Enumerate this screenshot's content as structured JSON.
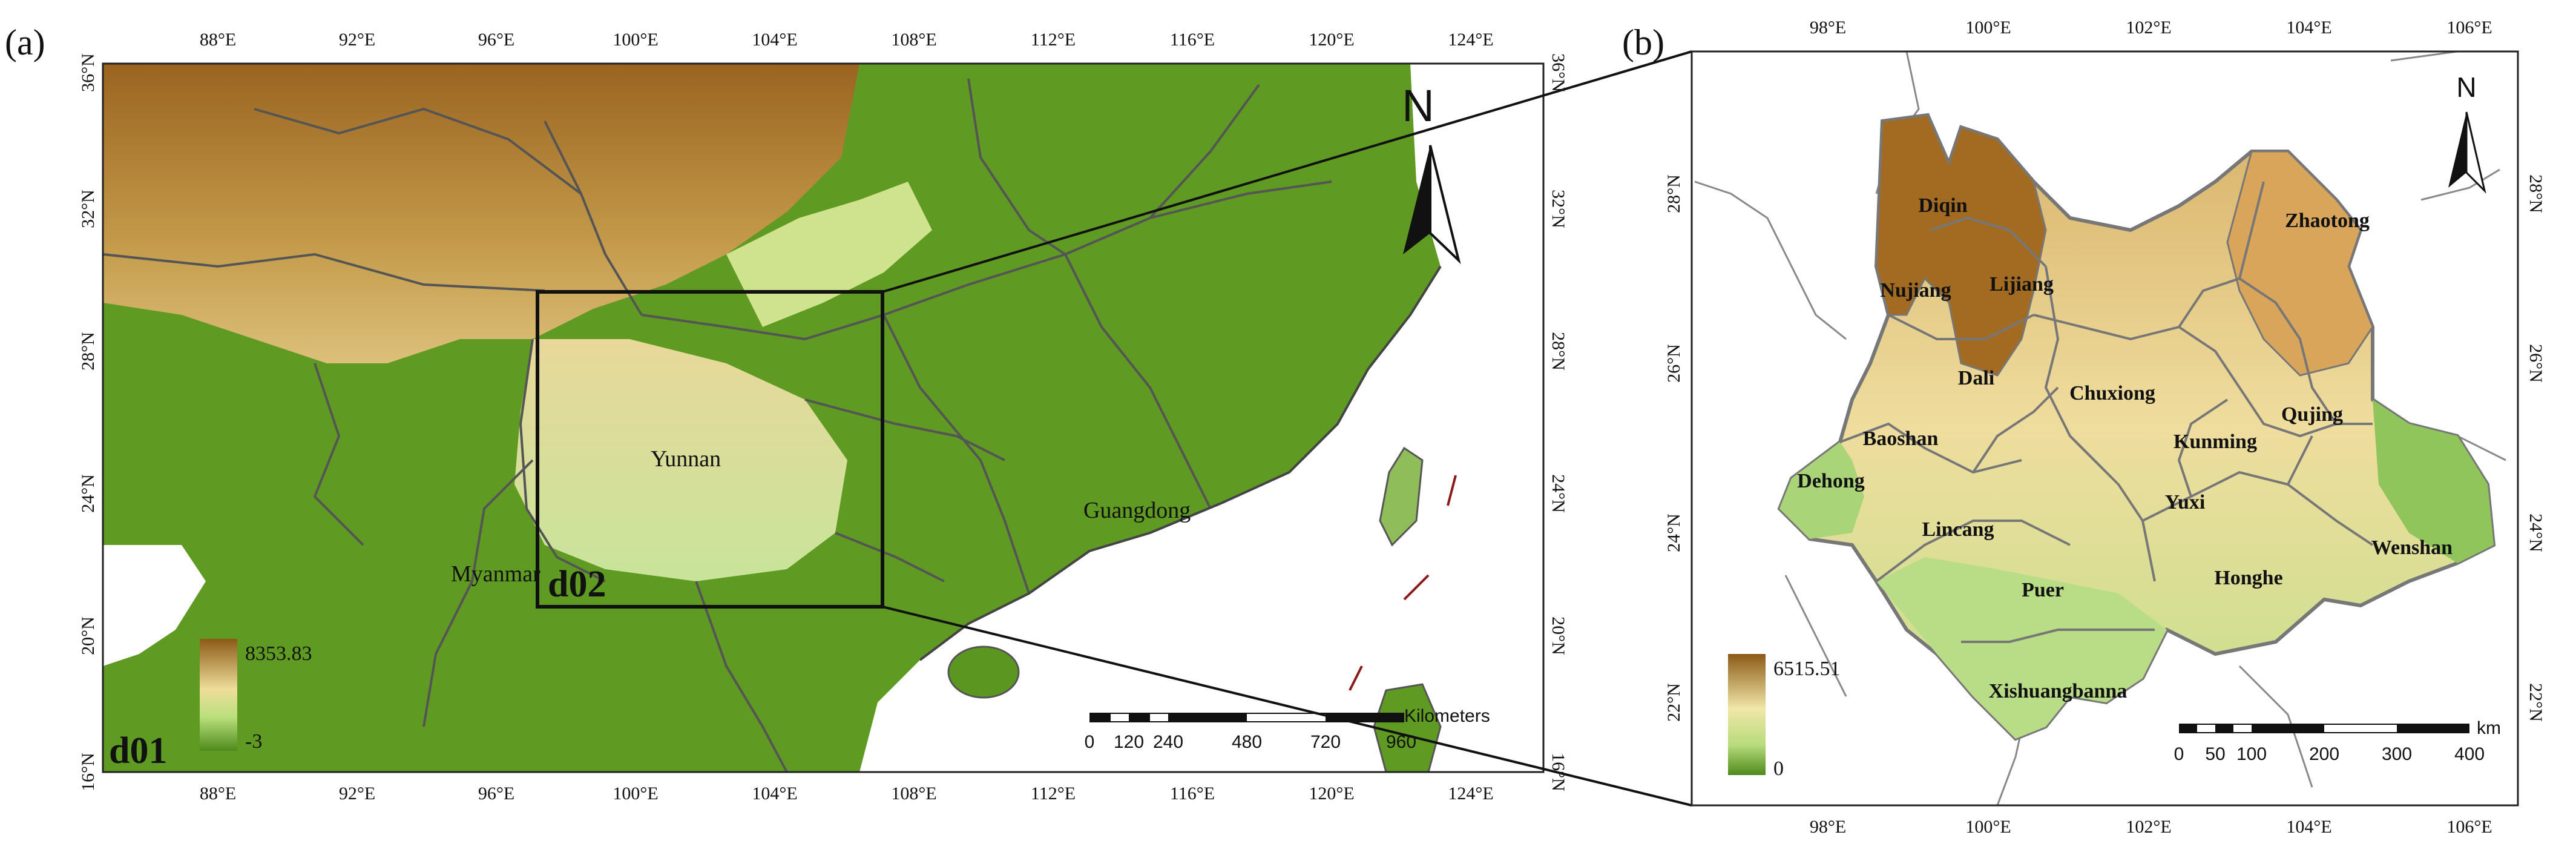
{
  "panel_a": {
    "letter": "(a)",
    "lon_ticks": [
      "88°E",
      "92°E",
      "96°E",
      "100°E",
      "104°E",
      "108°E",
      "112°E",
      "116°E",
      "120°E",
      "124°E"
    ],
    "lat_ticks": [
      "16°N",
      "20°N",
      "24°N",
      "28°N",
      "32°N",
      "36°N"
    ],
    "places": {
      "yunnan": "Yunnan",
      "guangdong": "Guangdong",
      "myanmar": "Myanmar"
    },
    "domain_outer": "d01",
    "domain_inner": "d02",
    "legend": {
      "max": "8353.83",
      "min": "-3"
    },
    "north": "N",
    "scalebar": {
      "ticks": [
        "0",
        "120",
        "240",
        "480",
        "720",
        "960"
      ],
      "unit": "Kilometers"
    }
  },
  "panel_b": {
    "letter": "(b)",
    "lon_ticks": [
      "98°E",
      "100°E",
      "102°E",
      "104°E",
      "106°E"
    ],
    "lat_ticks": [
      "22°N",
      "24°N",
      "26°N",
      "28°N"
    ],
    "prefectures": {
      "diqin": "Diqin",
      "nujiang": "Nujiang",
      "lijiang": "Lijiang",
      "zhaotong": "Zhaotong",
      "dali": "Dali",
      "chuxiong": "Chuxiong",
      "qujing": "Qujing",
      "baoshan": "Baoshan",
      "kunming": "Kunming",
      "dehong": "Dehong",
      "yuxi": "Yuxi",
      "lincang": "Lincang",
      "wenshan": "Wenshan",
      "honghe": "Honghe",
      "puer": "Puer",
      "xishuangbanna": "Xishuangbanna"
    },
    "legend": {
      "max": "6515.51",
      "min": "0"
    },
    "north": "N",
    "scalebar": {
      "ticks": [
        "0",
        "50",
        "100",
        "200",
        "300",
        "400"
      ],
      "unit": "km"
    }
  },
  "colors": {
    "high": "#8c5a16",
    "mid": "#f3edb0",
    "low": "#4f8a1c",
    "border": "#555555"
  }
}
